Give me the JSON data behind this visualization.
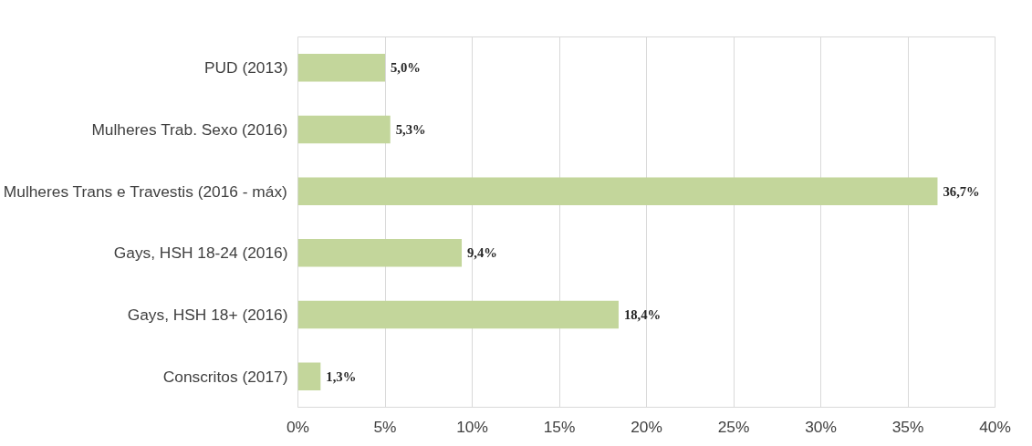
{
  "chart_data": {
    "type": "bar",
    "orientation": "horizontal",
    "categories": [
      "PUD (2013)",
      "Mulheres Trab. Sexo (2016)",
      "Mulheres Trans e Travestis (2016 - máx)",
      "Gays, HSH 18-24 (2016)",
      "Gays, HSH 18+ (2016)",
      "Conscritos (2017)"
    ],
    "values": [
      5.0,
      5.3,
      36.7,
      9.4,
      18.4,
      1.3
    ],
    "value_labels": [
      "5,0%",
      "5,3%",
      "36,7%",
      "9,4%",
      "18,4%",
      "1,3%"
    ],
    "color": "#c3d69b",
    "xlim": [
      0,
      40
    ],
    "xticks": [
      {
        "value": 0,
        "label": "0%"
      },
      {
        "value": 5,
        "label": "5%"
      },
      {
        "value": 10,
        "label": "10%"
      },
      {
        "value": 15,
        "label": "15%"
      },
      {
        "value": 20,
        "label": "20%"
      },
      {
        "value": 25,
        "label": "25%"
      },
      {
        "value": 30,
        "label": "30%"
      },
      {
        "value": 35,
        "label": "35%"
      },
      {
        "value": 40,
        "label": "40%"
      }
    ],
    "grid": "x"
  }
}
